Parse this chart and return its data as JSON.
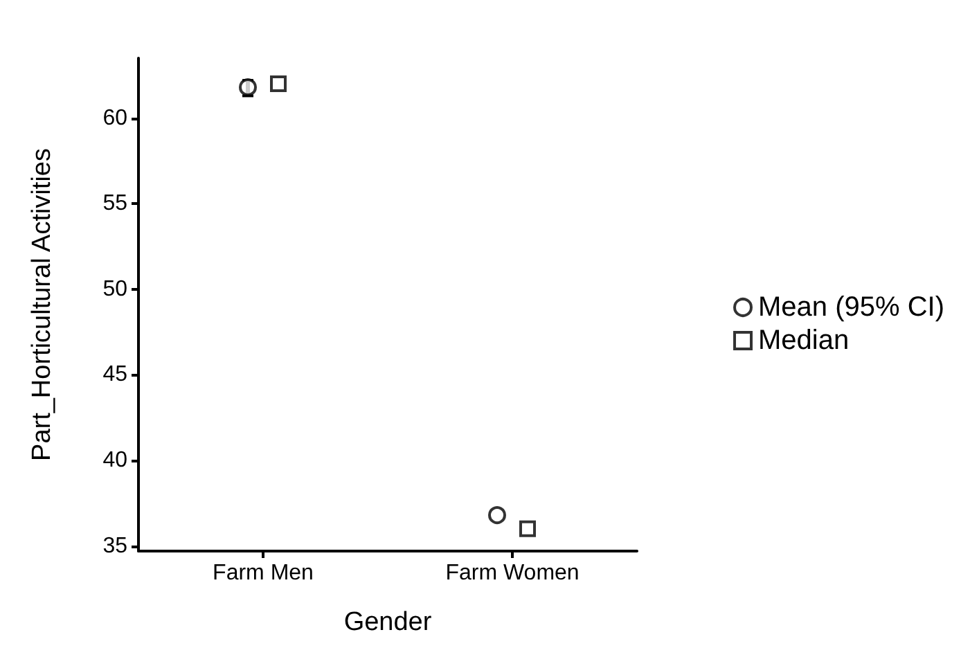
{
  "chart_data": {
    "type": "scatter",
    "xlabel": "Gender",
    "ylabel": "Part_Horticultural Activities",
    "categories": [
      "Farm Men",
      "Farm Women"
    ],
    "series": [
      {
        "name": "Mean (95% CI)",
        "color": "#000000",
        "marker": "circle",
        "values": [
          61.8,
          36.8
        ],
        "errors": [
          [
            61.3,
            62.2
          ],
          null
        ]
      },
      {
        "name": "Median",
        "color": "#000000",
        "marker": "square",
        "values": [
          62.0,
          36.0
        ]
      }
    ],
    "ylim": [
      34.7,
      63.5
    ],
    "yticks": [
      35,
      40,
      45,
      50,
      55,
      60
    ],
    "grid": false,
    "legend": "right"
  }
}
